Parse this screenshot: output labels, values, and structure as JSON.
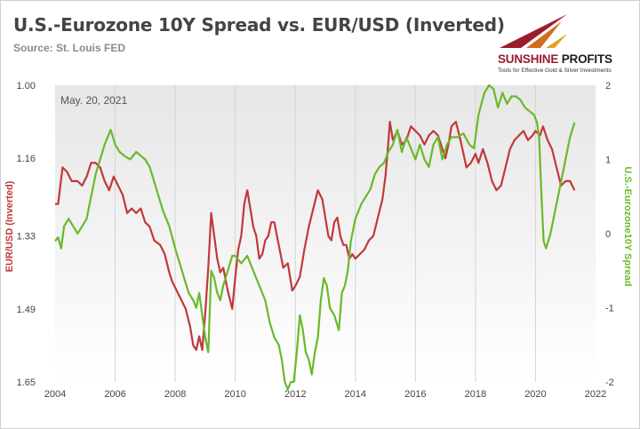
{
  "header": {
    "title": "U.S.-Eurozone 10Y Spread vs. EUR/USD (Inverted)",
    "source": "Source: St. Louis FED"
  },
  "logo": {
    "name_prefix": "SUNSHINE",
    "name_suffix": " PROFITS",
    "tagline": "Tools for Effective Gold & Silver Investments"
  },
  "colors": {
    "eurusd": "#c0393b",
    "spread": "#6bb92a",
    "plot_gradient_top": "#e6e6e6",
    "plot_gradient_bottom": "#ffffff",
    "grid": "#d4d4d4",
    "logo_red": "#9a1d2e",
    "logo_gold": "#e2a21d",
    "logo_orange": "#d26d1e"
  },
  "chart_data": {
    "type": "line",
    "annotation": "May. 20, 2021",
    "x_ticks": [
      "2004",
      "2006",
      "2008",
      "2010",
      "2012",
      "2014",
      "2016",
      "2018",
      "2020",
      "2022"
    ],
    "xlim": [
      2004,
      2022
    ],
    "left_axis": {
      "label": "EUR/USD (Inverted)",
      "inverted": true,
      "ylim": [
        1.0,
        1.65
      ],
      "ticks": [
        "1.00",
        "1.16",
        "1.33",
        "1.49",
        "1.65"
      ]
    },
    "right_axis": {
      "label": "U.S.-Eurozone10Y Spread",
      "ylim": [
        -2,
        2
      ],
      "ticks": [
        "2",
        "1",
        "0",
        "-1",
        "-2"
      ]
    },
    "grid": "vertical",
    "series": [
      {
        "axis": "left",
        "x": [
          2004.0,
          2004.1,
          2004.25,
          2004.4,
          2004.55,
          2004.75,
          2004.9,
          2005.05,
          2005.2,
          2005.35,
          2005.5,
          2005.65,
          2005.8,
          2005.95,
          2006.1,
          2006.25,
          2006.4,
          2006.55,
          2006.7,
          2006.85,
          2007.0,
          2007.15,
          2007.3,
          2007.5,
          2007.65,
          2007.8,
          2007.9,
          2008.05,
          2008.2,
          2008.35,
          2008.5,
          2008.6,
          2008.7,
          2008.8,
          2008.9,
          2009.0,
          2009.1,
          2009.2,
          2009.3,
          2009.4,
          2009.5,
          2009.6,
          2009.75,
          2009.9,
          2010.0,
          2010.1,
          2010.2,
          2010.3,
          2010.4,
          2010.5,
          2010.6,
          2010.7,
          2010.8,
          2010.9,
          2011.0,
          2011.1,
          2011.2,
          2011.3,
          2011.45,
          2011.6,
          2011.75,
          2011.9,
          2012.0,
          2012.15,
          2012.3,
          2012.45,
          2012.6,
          2012.75,
          2012.9,
          2013.0,
          2013.1,
          2013.2,
          2013.3,
          2013.4,
          2013.5,
          2013.6,
          2013.7,
          2013.8,
          2013.9,
          2014.0,
          2014.15,
          2014.3,
          2014.45,
          2014.6,
          2014.75,
          2014.9,
          2015.0,
          2015.08,
          2015.15,
          2015.25,
          2015.4,
          2015.55,
          2015.7,
          2015.85,
          2016.0,
          2016.15,
          2016.3,
          2016.45,
          2016.6,
          2016.75,
          2016.9,
          2017.0,
          2017.1,
          2017.2,
          2017.35,
          2017.5,
          2017.6,
          2017.7,
          2017.85,
          2018.0,
          2018.1,
          2018.25,
          2018.4,
          2018.55,
          2018.7,
          2018.85,
          2019.0,
          2019.15,
          2019.3,
          2019.45,
          2019.6,
          2019.75,
          2019.9,
          2020.0,
          2020.15,
          2020.25,
          2020.4,
          2020.55,
          2020.7,
          2020.85,
          2021.0,
          2021.15,
          2021.3
        ],
        "values": [
          1.26,
          1.26,
          1.18,
          1.19,
          1.21,
          1.21,
          1.22,
          1.2,
          1.17,
          1.17,
          1.18,
          1.21,
          1.23,
          1.2,
          1.22,
          1.24,
          1.28,
          1.27,
          1.28,
          1.27,
          1.3,
          1.31,
          1.34,
          1.35,
          1.37,
          1.41,
          1.43,
          1.45,
          1.47,
          1.49,
          1.53,
          1.57,
          1.58,
          1.55,
          1.58,
          1.5,
          1.4,
          1.28,
          1.33,
          1.38,
          1.41,
          1.4,
          1.45,
          1.49,
          1.42,
          1.36,
          1.33,
          1.26,
          1.23,
          1.27,
          1.31,
          1.33,
          1.38,
          1.37,
          1.34,
          1.33,
          1.3,
          1.3,
          1.35,
          1.4,
          1.39,
          1.45,
          1.44,
          1.42,
          1.36,
          1.31,
          1.27,
          1.23,
          1.25,
          1.29,
          1.33,
          1.34,
          1.3,
          1.29,
          1.33,
          1.35,
          1.35,
          1.38,
          1.37,
          1.38,
          1.37,
          1.36,
          1.34,
          1.33,
          1.29,
          1.25,
          1.2,
          1.14,
          1.08,
          1.12,
          1.1,
          1.13,
          1.12,
          1.09,
          1.1,
          1.11,
          1.13,
          1.11,
          1.1,
          1.11,
          1.14,
          1.16,
          1.13,
          1.09,
          1.08,
          1.12,
          1.15,
          1.18,
          1.17,
          1.15,
          1.17,
          1.14,
          1.17,
          1.21,
          1.23,
          1.22,
          1.18,
          1.14,
          1.12,
          1.11,
          1.1,
          1.12,
          1.11,
          1.1,
          1.11,
          1.09,
          1.12,
          1.14,
          1.18,
          1.22,
          1.21,
          1.21,
          1.23
        ]
      },
      {
        "axis": "right",
        "x": [
          2004.0,
          2004.1,
          2004.2,
          2004.3,
          2004.45,
          2004.6,
          2004.75,
          2004.9,
          2005.05,
          2005.2,
          2005.35,
          2005.5,
          2005.65,
          2005.75,
          2005.85,
          2006.0,
          2006.15,
          2006.3,
          2006.5,
          2006.7,
          2006.85,
          2007.0,
          2007.15,
          2007.3,
          2007.45,
          2007.6,
          2007.8,
          2008.0,
          2008.15,
          2008.3,
          2008.45,
          2008.6,
          2008.7,
          2008.8,
          2008.9,
          2009.0,
          2009.1,
          2009.2,
          2009.3,
          2009.4,
          2009.5,
          2009.6,
          2009.75,
          2009.9,
          2010.0,
          2010.2,
          2010.4,
          2010.6,
          2010.8,
          2011.0,
          2011.15,
          2011.3,
          2011.45,
          2011.55,
          2011.65,
          2011.75,
          2011.85,
          2011.95,
          2012.05,
          2012.15,
          2012.25,
          2012.35,
          2012.45,
          2012.55,
          2012.65,
          2012.75,
          2012.85,
          2012.95,
          2013.05,
          2013.15,
          2013.3,
          2013.45,
          2013.55,
          2013.65,
          2013.75,
          2013.85,
          2014.0,
          2014.1,
          2014.2,
          2014.35,
          2014.5,
          2014.65,
          2014.8,
          2014.95,
          2015.1,
          2015.25,
          2015.4,
          2015.55,
          2015.7,
          2015.85,
          2016.0,
          2016.15,
          2016.3,
          2016.45,
          2016.6,
          2016.75,
          2016.9,
          2017.05,
          2017.2,
          2017.4,
          2017.6,
          2017.8,
          2017.95,
          2018.1,
          2018.2,
          2018.3,
          2018.45,
          2018.6,
          2018.75,
          2018.9,
          2019.05,
          2019.2,
          2019.35,
          2019.5,
          2019.65,
          2019.8,
          2019.95,
          2020.05,
          2020.12,
          2020.2,
          2020.27,
          2020.35,
          2020.5,
          2020.65,
          2020.8,
          2020.95,
          2021.05,
          2021.15,
          2021.3
        ],
        "values": [
          -0.1,
          -0.05,
          -0.2,
          0.1,
          0.2,
          0.1,
          0.0,
          0.1,
          0.2,
          0.5,
          0.8,
          1.0,
          1.2,
          1.3,
          1.4,
          1.2,
          1.1,
          1.05,
          1.0,
          1.1,
          1.05,
          1.0,
          0.9,
          0.7,
          0.5,
          0.3,
          0.1,
          -0.2,
          -0.4,
          -0.6,
          -0.8,
          -0.9,
          -1.0,
          -0.8,
          -1.1,
          -1.4,
          -1.6,
          -0.5,
          -0.6,
          -0.8,
          -0.9,
          -0.7,
          -0.5,
          -0.3,
          -0.3,
          -0.4,
          -0.3,
          -0.5,
          -0.7,
          -0.9,
          -1.2,
          -1.4,
          -1.5,
          -1.7,
          -2.0,
          -2.1,
          -2.0,
          -2.0,
          -1.6,
          -1.1,
          -1.3,
          -1.6,
          -1.7,
          -1.9,
          -1.6,
          -1.4,
          -0.9,
          -0.6,
          -0.7,
          -1.0,
          -1.1,
          -1.3,
          -0.8,
          -0.7,
          -0.5,
          -0.1,
          0.2,
          0.3,
          0.4,
          0.5,
          0.6,
          0.8,
          0.9,
          0.95,
          1.1,
          1.2,
          1.4,
          1.1,
          1.3,
          1.15,
          1.0,
          1.2,
          1.0,
          0.9,
          1.2,
          1.3,
          1.0,
          1.2,
          1.3,
          1.3,
          1.35,
          1.2,
          1.15,
          1.6,
          1.75,
          1.9,
          2.0,
          1.95,
          1.7,
          1.9,
          1.75,
          1.85,
          1.85,
          1.8,
          1.7,
          1.65,
          1.6,
          1.5,
          1.3,
          0.5,
          -0.1,
          -0.2,
          0.0,
          0.3,
          0.6,
          0.9,
          1.1,
          1.3,
          1.5
        ]
      }
    ]
  }
}
